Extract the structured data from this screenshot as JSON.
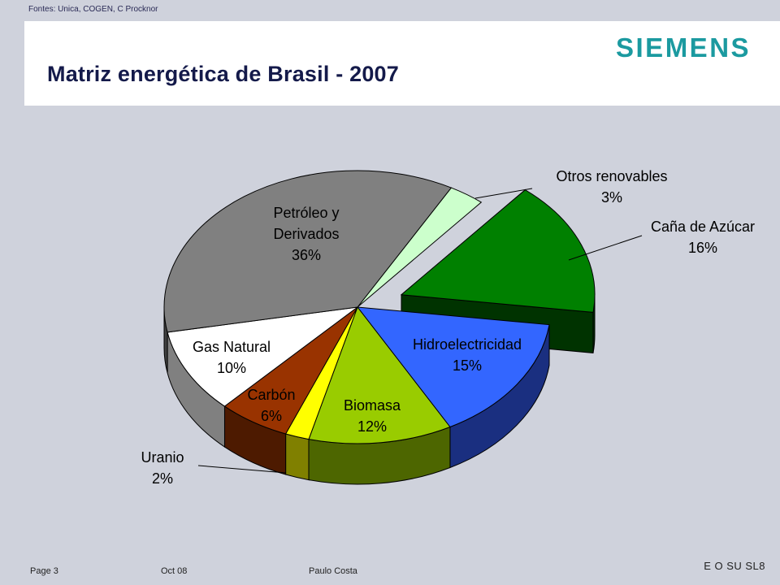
{
  "source_note": "Fontes: Unica, COGEN, C Procknor",
  "title": "Matriz energética de Brasil - 2007",
  "logo_text": "SIEMENS",
  "colors": {
    "background": "#cfd2dc",
    "title": "#141a4a",
    "logo": "#1b9aa0"
  },
  "footer": {
    "page": "Page 3",
    "date": "Oct 08",
    "author": "Paulo Costa",
    "code": "E O SU SL8"
  },
  "chart_data": {
    "type": "pie",
    "title": "",
    "slices": [
      {
        "label": "Otros renovables",
        "value": 3,
        "value_label": "3%",
        "color": "#ccffcc",
        "dark": "#7a8a7a",
        "exploded": false,
        "label_color": "#000000"
      },
      {
        "label": "Caña de Azúcar",
        "value": 16,
        "value_label": "16%",
        "color": "#008000",
        "dark": "#003300",
        "exploded": true,
        "label_color": "#000000"
      },
      {
        "label": "Hidroelectricidad",
        "value": 15,
        "value_label": "15%",
        "color": "#3366ff",
        "dark": "#1a2f80",
        "exploded": false,
        "label_color": "#000000"
      },
      {
        "label": "Biomasa",
        "value": 12,
        "value_label": "12%",
        "color": "#99cc00",
        "dark": "#4d6600",
        "exploded": false,
        "label_color": "#ffffff"
      },
      {
        "label": "Uranio",
        "value": 2,
        "value_label": "2%",
        "color": "#ffff00",
        "dark": "#808000",
        "exploded": false,
        "label_color": "#000000"
      },
      {
        "label": "Carbón",
        "value": 6,
        "value_label": "6%",
        "color": "#993300",
        "dark": "#4d1a00",
        "exploded": false,
        "label_color": "#ffffff"
      },
      {
        "label": "Gas Natural",
        "value": 10,
        "value_label": "10%",
        "color": "#ffffff",
        "dark": "#808080",
        "exploded": false,
        "label_color": "#000000"
      },
      {
        "label": "Petróleo y Derivados",
        "value": 36,
        "value_label": "36%",
        "color": "#808080",
        "dark": "#404040",
        "exploded": false,
        "label_color": "#ffffff"
      }
    ]
  }
}
